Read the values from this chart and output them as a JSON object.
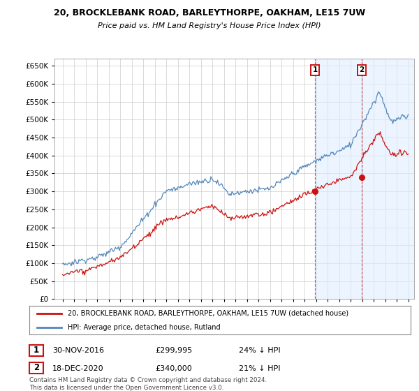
{
  "title1": "20, BROCKLEBANK ROAD, BARLEYTHORPE, OAKHAM, LE15 7UW",
  "title2": "Price paid vs. HM Land Registry's House Price Index (HPI)",
  "ytick_values": [
    0,
    50000,
    100000,
    150000,
    200000,
    250000,
    300000,
    350000,
    400000,
    450000,
    500000,
    550000,
    600000,
    650000
  ],
  "hpi_color": "#5588bb",
  "price_color": "#cc1111",
  "marker1_year": 2016.917,
  "marker1_price": 299995,
  "marker2_year": 2020.958,
  "marker2_price": 340000,
  "legend_line1": "20, BROCKLEBANK ROAD, BARLEYTHORPE, OAKHAM, LE15 7UW (detached house)",
  "legend_line2": "HPI: Average price, detached house, Rutland",
  "marker1_date": "30-NOV-2016",
  "marker1_pricef": "£299,995",
  "marker1_pct": "24% ↓ HPI",
  "marker2_date": "18-DEC-2020",
  "marker2_pricef": "£340,000",
  "marker2_pct": "21% ↓ HPI",
  "footnote": "Contains HM Land Registry data © Crown copyright and database right 2024.\nThis data is licensed under the Open Government Licence v3.0.",
  "background_color": "#ffffff",
  "grid_color": "#cccccc",
  "span_color": "#ddeeff",
  "x_start_year": 1995,
  "x_end_year": 2025
}
